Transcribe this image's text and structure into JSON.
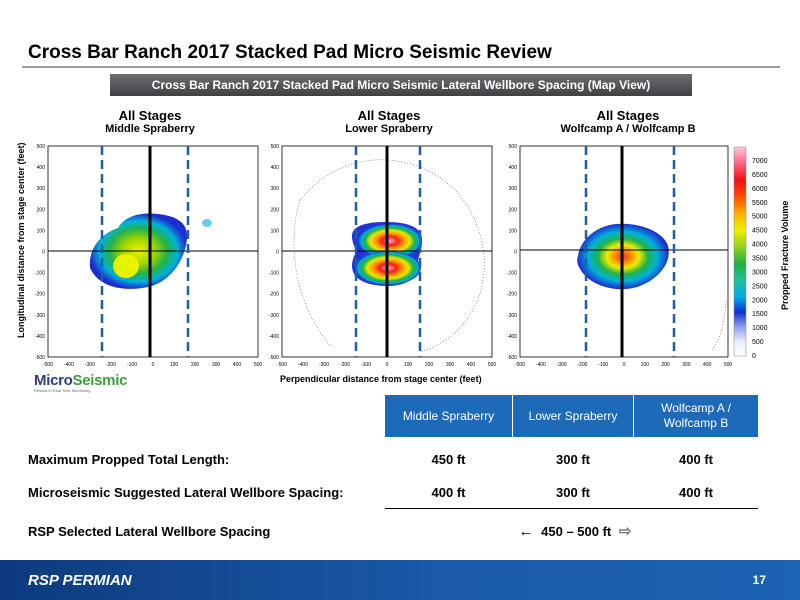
{
  "title": "Cross Bar Ranch 2017 Stacked Pad Micro Seismic Review",
  "subtitle": "Cross Bar Ranch 2017 Stacked Pad Micro Seismic Lateral Wellbore Spacing (Map View)",
  "panels": [
    {
      "heading": "All Stages",
      "zone": "Middle Spraberry"
    },
    {
      "heading": "All Stages",
      "zone": "Lower Spraberry"
    },
    {
      "heading": "All Stages",
      "zone": "Wolfcamp A / Wolfcamp B"
    }
  ],
  "axes": {
    "ylabel": "Longitudinal distance from stage center (feet)",
    "xlabel": "Perpendicular distance from stage center  (feet)",
    "xticks": [
      "-500",
      "-400",
      "-300",
      "-200",
      "-100",
      "0",
      "100",
      "200",
      "300",
      "400",
      "500"
    ],
    "yticks": [
      "500",
      "400",
      "300",
      "200",
      "100",
      "0",
      "-100",
      "-200",
      "-300",
      "-400",
      "-500"
    ]
  },
  "colorbar": {
    "label": "Propped Fracture Volume",
    "ticks": [
      "7000",
      "6500",
      "6000",
      "5500",
      "5000",
      "4500",
      "4000",
      "3500",
      "3000",
      "2500",
      "2000",
      "1500",
      "1000",
      "500",
      "0"
    ]
  },
  "logo": {
    "word1": "Micro",
    "word2": "Seismic",
    "tagline": "Results in Real Time Monitoring"
  },
  "table": {
    "headers": [
      "Middle Spraberry",
      "Lower Spraberry",
      "Wolfcamp A / Wolfcamp B"
    ],
    "rows": [
      {
        "label": "Maximum Propped Total Length:",
        "values": [
          "450 ft",
          "300 ft",
          "400 ft"
        ]
      },
      {
        "label": "Microseismic Suggested Lateral Wellbore Spacing:",
        "values": [
          "400 ft",
          "300 ft",
          "400 ft"
        ]
      }
    ],
    "rsp_label": "RSP Selected Lateral Wellbore Spacing",
    "rsp_value": "450 – 500 ft"
  },
  "footer": {
    "brand": "RSP PERMIAN",
    "page": "17"
  }
}
